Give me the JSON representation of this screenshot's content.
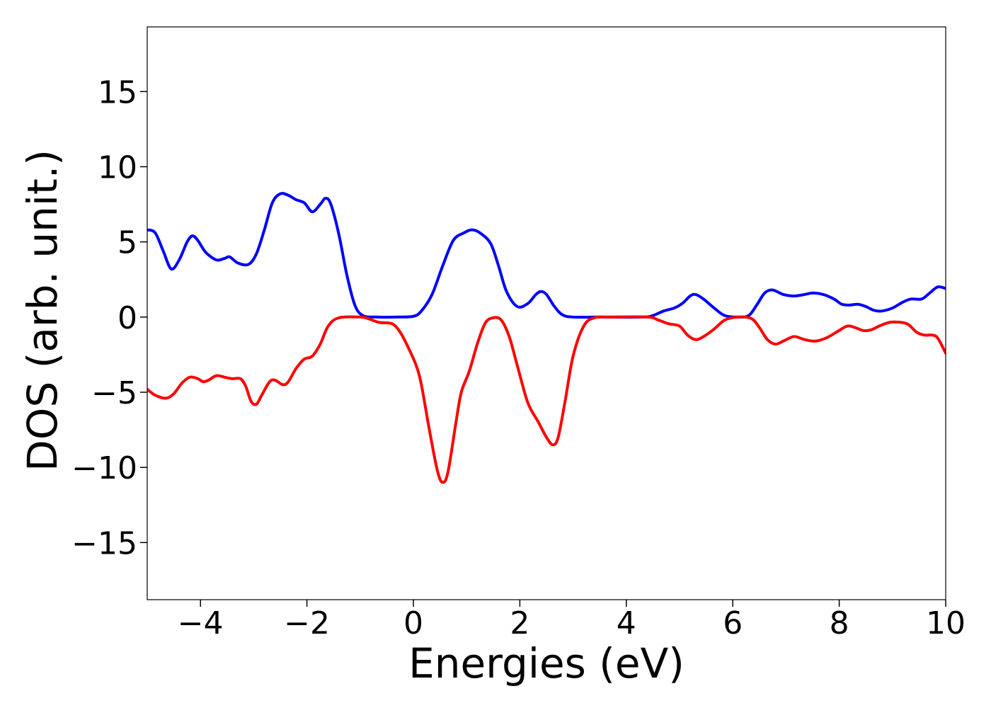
{
  "chart_data": {
    "type": "line",
    "title": "",
    "xlabel": "Energies (eV)",
    "ylabel": "DOS (arb. unit.)",
    "xlim": [
      -5,
      10
    ],
    "ylim": [
      -18.8,
      19.3
    ],
    "x_ticks": [
      -4,
      -2,
      0,
      2,
      4,
      6,
      8,
      10
    ],
    "x_tick_labels": [
      "−4",
      "−2",
      "0",
      "2",
      "4",
      "6",
      "8",
      "10"
    ],
    "y_ticks": [
      15,
      10,
      5,
      0,
      -5,
      -10,
      -15
    ],
    "y_tick_labels": [
      "15",
      "10",
      "5",
      "0",
      "−5",
      "−10",
      "−15"
    ],
    "grid": false,
    "legend": "none",
    "series": [
      {
        "color": "#0000ff",
        "points": [
          [
            -5.0,
            5.8
          ],
          [
            -4.85,
            5.6
          ],
          [
            -4.7,
            4.4
          ],
          [
            -4.55,
            3.2
          ],
          [
            -4.4,
            3.8
          ],
          [
            -4.25,
            5.0
          ],
          [
            -4.15,
            5.4
          ],
          [
            -4.05,
            5.1
          ],
          [
            -3.9,
            4.3
          ],
          [
            -3.7,
            3.8
          ],
          [
            -3.55,
            3.9
          ],
          [
            -3.45,
            4.0
          ],
          [
            -3.3,
            3.6
          ],
          [
            -3.1,
            3.5
          ],
          [
            -2.95,
            4.2
          ],
          [
            -2.8,
            5.8
          ],
          [
            -2.65,
            7.6
          ],
          [
            -2.5,
            8.2
          ],
          [
            -2.35,
            8.1
          ],
          [
            -2.2,
            7.8
          ],
          [
            -2.05,
            7.6
          ],
          [
            -1.9,
            7.0
          ],
          [
            -1.75,
            7.5
          ],
          [
            -1.65,
            7.9
          ],
          [
            -1.55,
            7.5
          ],
          [
            -1.4,
            5.5
          ],
          [
            -1.25,
            2.8
          ],
          [
            -1.1,
            0.8
          ],
          [
            -0.95,
            0.1
          ],
          [
            -0.7,
            0.0
          ],
          [
            -0.3,
            0.0
          ],
          [
            0.0,
            0.05
          ],
          [
            0.15,
            0.4
          ],
          [
            0.35,
            1.5
          ],
          [
            0.55,
            3.4
          ],
          [
            0.75,
            5.1
          ],
          [
            0.95,
            5.6
          ],
          [
            1.1,
            5.8
          ],
          [
            1.25,
            5.6
          ],
          [
            1.45,
            4.9
          ],
          [
            1.6,
            3.4
          ],
          [
            1.75,
            1.7
          ],
          [
            1.95,
            0.7
          ],
          [
            2.15,
            0.9
          ],
          [
            2.3,
            1.5
          ],
          [
            2.4,
            1.7
          ],
          [
            2.5,
            1.5
          ],
          [
            2.65,
            0.7
          ],
          [
            2.8,
            0.15
          ],
          [
            3.0,
            0.0
          ],
          [
            3.5,
            0.0
          ],
          [
            4.3,
            0.0
          ],
          [
            4.5,
            0.1
          ],
          [
            4.7,
            0.4
          ],
          [
            4.9,
            0.6
          ],
          [
            5.05,
            0.9
          ],
          [
            5.2,
            1.4
          ],
          [
            5.3,
            1.5
          ],
          [
            5.45,
            1.2
          ],
          [
            5.65,
            0.6
          ],
          [
            5.85,
            0.1
          ],
          [
            6.1,
            0.0
          ],
          [
            6.3,
            0.1
          ],
          [
            6.45,
            0.8
          ],
          [
            6.6,
            1.6
          ],
          [
            6.75,
            1.8
          ],
          [
            6.95,
            1.5
          ],
          [
            7.15,
            1.4
          ],
          [
            7.35,
            1.5
          ],
          [
            7.5,
            1.6
          ],
          [
            7.7,
            1.5
          ],
          [
            7.9,
            1.2
          ],
          [
            8.05,
            0.85
          ],
          [
            8.2,
            0.8
          ],
          [
            8.35,
            0.85
          ],
          [
            8.5,
            0.7
          ],
          [
            8.65,
            0.45
          ],
          [
            8.8,
            0.4
          ],
          [
            9.0,
            0.6
          ],
          [
            9.2,
            1.0
          ],
          [
            9.35,
            1.2
          ],
          [
            9.55,
            1.2
          ],
          [
            9.7,
            1.6
          ],
          [
            9.85,
            2.0
          ],
          [
            10.0,
            1.9
          ]
        ]
      },
      {
        "color": "#ff0000",
        "points": [
          [
            -5.0,
            -4.8
          ],
          [
            -4.85,
            -5.2
          ],
          [
            -4.65,
            -5.4
          ],
          [
            -4.5,
            -5.1
          ],
          [
            -4.35,
            -4.4
          ],
          [
            -4.2,
            -4.0
          ],
          [
            -4.05,
            -4.1
          ],
          [
            -3.95,
            -4.3
          ],
          [
            -3.85,
            -4.2
          ],
          [
            -3.7,
            -3.9
          ],
          [
            -3.55,
            -4.0
          ],
          [
            -3.4,
            -4.1
          ],
          [
            -3.25,
            -4.1
          ],
          [
            -3.15,
            -4.6
          ],
          [
            -3.05,
            -5.6
          ],
          [
            -2.95,
            -5.8
          ],
          [
            -2.85,
            -5.2
          ],
          [
            -2.7,
            -4.3
          ],
          [
            -2.6,
            -4.2
          ],
          [
            -2.45,
            -4.5
          ],
          [
            -2.35,
            -4.3
          ],
          [
            -2.2,
            -3.4
          ],
          [
            -2.05,
            -2.8
          ],
          [
            -1.9,
            -2.6
          ],
          [
            -1.75,
            -1.8
          ],
          [
            -1.6,
            -0.6
          ],
          [
            -1.4,
            -0.05
          ],
          [
            -1.0,
            0.0
          ],
          [
            -0.85,
            -0.1
          ],
          [
            -0.65,
            -0.35
          ],
          [
            -0.4,
            -0.45
          ],
          [
            -0.25,
            -1.0
          ],
          [
            -0.1,
            -2.0
          ],
          [
            0.05,
            -3.2
          ],
          [
            0.15,
            -4.5
          ],
          [
            0.3,
            -7.5
          ],
          [
            0.45,
            -10.2
          ],
          [
            0.55,
            -11.0
          ],
          [
            0.65,
            -10.3
          ],
          [
            0.8,
            -7.0
          ],
          [
            0.9,
            -5.0
          ],
          [
            1.05,
            -3.6
          ],
          [
            1.2,
            -1.8
          ],
          [
            1.35,
            -0.4
          ],
          [
            1.5,
            -0.05
          ],
          [
            1.65,
            -0.2
          ],
          [
            1.8,
            -1.3
          ],
          [
            1.95,
            -3.2
          ],
          [
            2.15,
            -5.7
          ],
          [
            2.35,
            -7.0
          ],
          [
            2.5,
            -8.0
          ],
          [
            2.62,
            -8.5
          ],
          [
            2.72,
            -8.0
          ],
          [
            2.85,
            -5.6
          ],
          [
            3.0,
            -2.6
          ],
          [
            3.2,
            -0.6
          ],
          [
            3.4,
            -0.05
          ],
          [
            3.7,
            0.0
          ],
          [
            4.4,
            0.0
          ],
          [
            4.6,
            -0.2
          ],
          [
            4.8,
            -0.45
          ],
          [
            5.0,
            -0.6
          ],
          [
            5.15,
            -1.2
          ],
          [
            5.3,
            -1.5
          ],
          [
            5.45,
            -1.3
          ],
          [
            5.65,
            -0.8
          ],
          [
            5.85,
            -0.2
          ],
          [
            6.1,
            0.0
          ],
          [
            6.35,
            -0.1
          ],
          [
            6.5,
            -0.7
          ],
          [
            6.65,
            -1.5
          ],
          [
            6.8,
            -1.8
          ],
          [
            6.95,
            -1.6
          ],
          [
            7.15,
            -1.3
          ],
          [
            7.35,
            -1.5
          ],
          [
            7.55,
            -1.6
          ],
          [
            7.75,
            -1.4
          ],
          [
            7.95,
            -1.0
          ],
          [
            8.15,
            -0.6
          ],
          [
            8.3,
            -0.7
          ],
          [
            8.45,
            -0.9
          ],
          [
            8.6,
            -0.85
          ],
          [
            8.75,
            -0.6
          ],
          [
            8.95,
            -0.35
          ],
          [
            9.15,
            -0.35
          ],
          [
            9.3,
            -0.5
          ],
          [
            9.45,
            -1.0
          ],
          [
            9.6,
            -1.2
          ],
          [
            9.75,
            -1.2
          ],
          [
            9.85,
            -1.4
          ],
          [
            10.0,
            -2.4
          ]
        ]
      }
    ]
  }
}
